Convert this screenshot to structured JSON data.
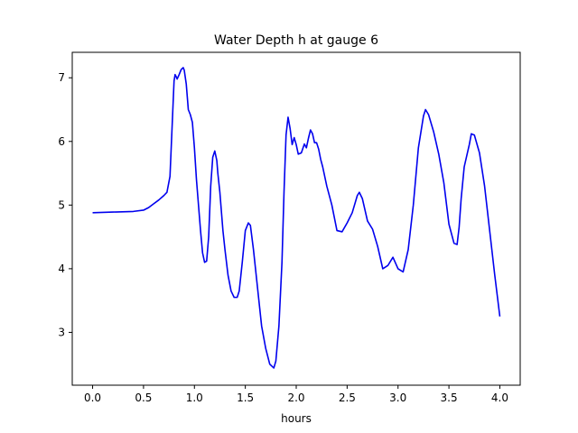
{
  "chart_data": {
    "type": "line",
    "title": "Water Depth h at gauge 6",
    "xlabel": "hours",
    "ylabel": "",
    "xlim": [
      -0.2,
      4.2
    ],
    "ylim": [
      2.17,
      7.4
    ],
    "x_ticks": [
      0.0,
      0.5,
      1.0,
      1.5,
      2.0,
      2.5,
      3.0,
      3.5,
      4.0
    ],
    "x_tick_labels": [
      "0.0",
      "0.5",
      "1.0",
      "1.5",
      "2.0",
      "2.5",
      "3.0",
      "3.5",
      "4.0"
    ],
    "y_ticks": [
      3,
      4,
      5,
      6,
      7
    ],
    "y_tick_labels": [
      "3",
      "4",
      "5",
      "6",
      "7"
    ],
    "grid": false,
    "line_color": "#0000ee",
    "series": [
      {
        "x": [
          0.0,
          0.2,
          0.4,
          0.5,
          0.55,
          0.6,
          0.65,
          0.7,
          0.73,
          0.76,
          0.78,
          0.8,
          0.81,
          0.82,
          0.83,
          0.85,
          0.87,
          0.89,
          0.9,
          0.92,
          0.94,
          0.96,
          0.98,
          1.0,
          1.02,
          1.04,
          1.06,
          1.08,
          1.1,
          1.12,
          1.14,
          1.16,
          1.18,
          1.2,
          1.22,
          1.23,
          1.25,
          1.28,
          1.3,
          1.33,
          1.36,
          1.39,
          1.42,
          1.44,
          1.47,
          1.5,
          1.53,
          1.55,
          1.58,
          1.62,
          1.66,
          1.7,
          1.74,
          1.78,
          1.8,
          1.83,
          1.86,
          1.88,
          1.9,
          1.92,
          1.94,
          1.96,
          1.98,
          2.0,
          2.02,
          2.05,
          2.08,
          2.1,
          2.12,
          2.14,
          2.16,
          2.18,
          2.2,
          2.22,
          2.24,
          2.26,
          2.3,
          2.35,
          2.4,
          2.45,
          2.5,
          2.55,
          2.6,
          2.62,
          2.65,
          2.7,
          2.75,
          2.8,
          2.85,
          2.9,
          2.95,
          3.0,
          3.05,
          3.1,
          3.15,
          3.2,
          3.25,
          3.27,
          3.3,
          3.35,
          3.4,
          3.45,
          3.5,
          3.55,
          3.58,
          3.6,
          3.62,
          3.65,
          3.7,
          3.72,
          3.75,
          3.8,
          3.85,
          3.9,
          3.95,
          4.0
        ],
        "y": [
          4.88,
          4.89,
          4.9,
          4.92,
          4.96,
          5.02,
          5.08,
          5.15,
          5.2,
          5.45,
          6.2,
          6.95,
          7.05,
          7.02,
          6.98,
          7.05,
          7.13,
          7.16,
          7.12,
          6.9,
          6.5,
          6.42,
          6.3,
          5.9,
          5.4,
          5.0,
          4.6,
          4.25,
          4.1,
          4.12,
          4.5,
          5.3,
          5.75,
          5.85,
          5.7,
          5.5,
          5.2,
          4.6,
          4.3,
          3.9,
          3.65,
          3.55,
          3.55,
          3.65,
          4.1,
          4.6,
          4.72,
          4.68,
          4.3,
          3.7,
          3.1,
          2.75,
          2.5,
          2.44,
          2.55,
          3.1,
          4.1,
          5.2,
          6.1,
          6.38,
          6.2,
          5.95,
          6.06,
          5.95,
          5.8,
          5.82,
          5.96,
          5.9,
          6.05,
          6.18,
          6.12,
          5.98,
          5.98,
          5.88,
          5.72,
          5.6,
          5.3,
          5.0,
          4.6,
          4.58,
          4.72,
          4.88,
          5.15,
          5.2,
          5.1,
          4.75,
          4.62,
          4.35,
          4.0,
          4.05,
          4.18,
          4.0,
          3.95,
          4.3,
          5.0,
          5.9,
          6.4,
          6.5,
          6.42,
          6.15,
          5.8,
          5.35,
          4.7,
          4.4,
          4.38,
          4.65,
          5.1,
          5.6,
          5.95,
          6.12,
          6.1,
          5.82,
          5.3,
          4.6,
          3.9,
          3.25
        ]
      }
    ]
  }
}
